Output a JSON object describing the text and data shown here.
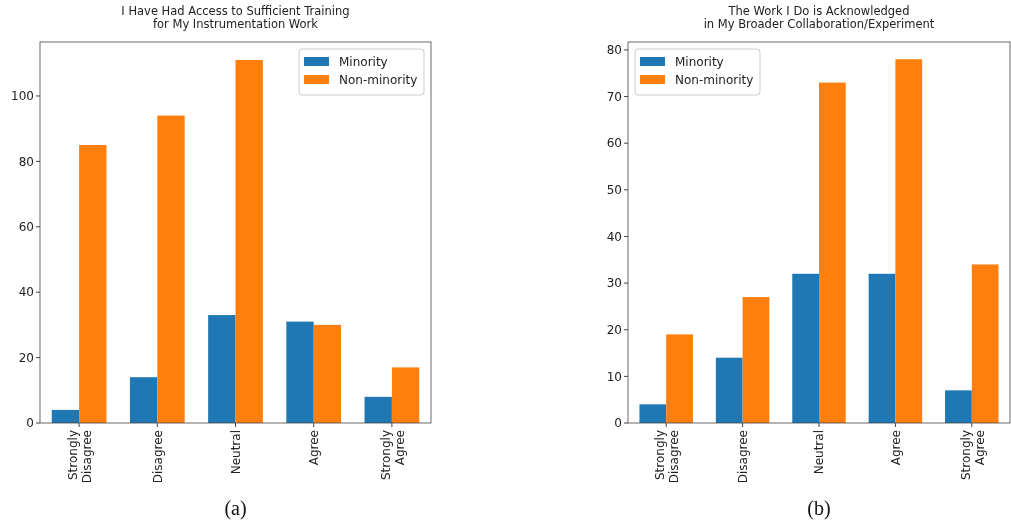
{
  "chart_data": [
    {
      "type": "bar",
      "title": "I Have Had Access to Sufficient Training\nfor My Instrumentation Work",
      "categories": [
        "Strongly Disagree",
        "Disagree",
        "Neutral",
        "Agree",
        "Strongly Agree"
      ],
      "series": [
        {
          "name": "Minority",
          "color": "#1f77b4",
          "values": [
            4,
            14,
            33,
            31,
            8
          ]
        },
        {
          "name": "Non-minority",
          "color": "#ff7f0e",
          "values": [
            85,
            94,
            111,
            30,
            17
          ]
        }
      ],
      "ylim": [
        0,
        116.5
      ],
      "yticks": [
        0,
        20,
        40,
        60,
        80,
        100
      ],
      "legend": "top right",
      "grid": false,
      "annotations": [
        "(a)"
      ]
    },
    {
      "type": "bar",
      "title": "The Work I Do is Acknowledged\nin My Broader Collaboration/Experiment",
      "categories": [
        "Strongly Disagree",
        "Disagree",
        "Neutral",
        "Agree",
        "Strongly Agree"
      ],
      "series": [
        {
          "name": "Minority",
          "color": "#1f77b4",
          "values": [
            4,
            14,
            32,
            32,
            7
          ]
        },
        {
          "name": "Non-minority",
          "color": "#ff7f0e",
          "values": [
            19,
            27,
            73,
            78,
            34
          ]
        }
      ],
      "ylim": [
        0,
        81.7
      ],
      "yticks": [
        0,
        10,
        20,
        30,
        40,
        50,
        60,
        70,
        80
      ],
      "legend": "top left",
      "grid": false,
      "annotations": [
        "(b)"
      ]
    }
  ]
}
